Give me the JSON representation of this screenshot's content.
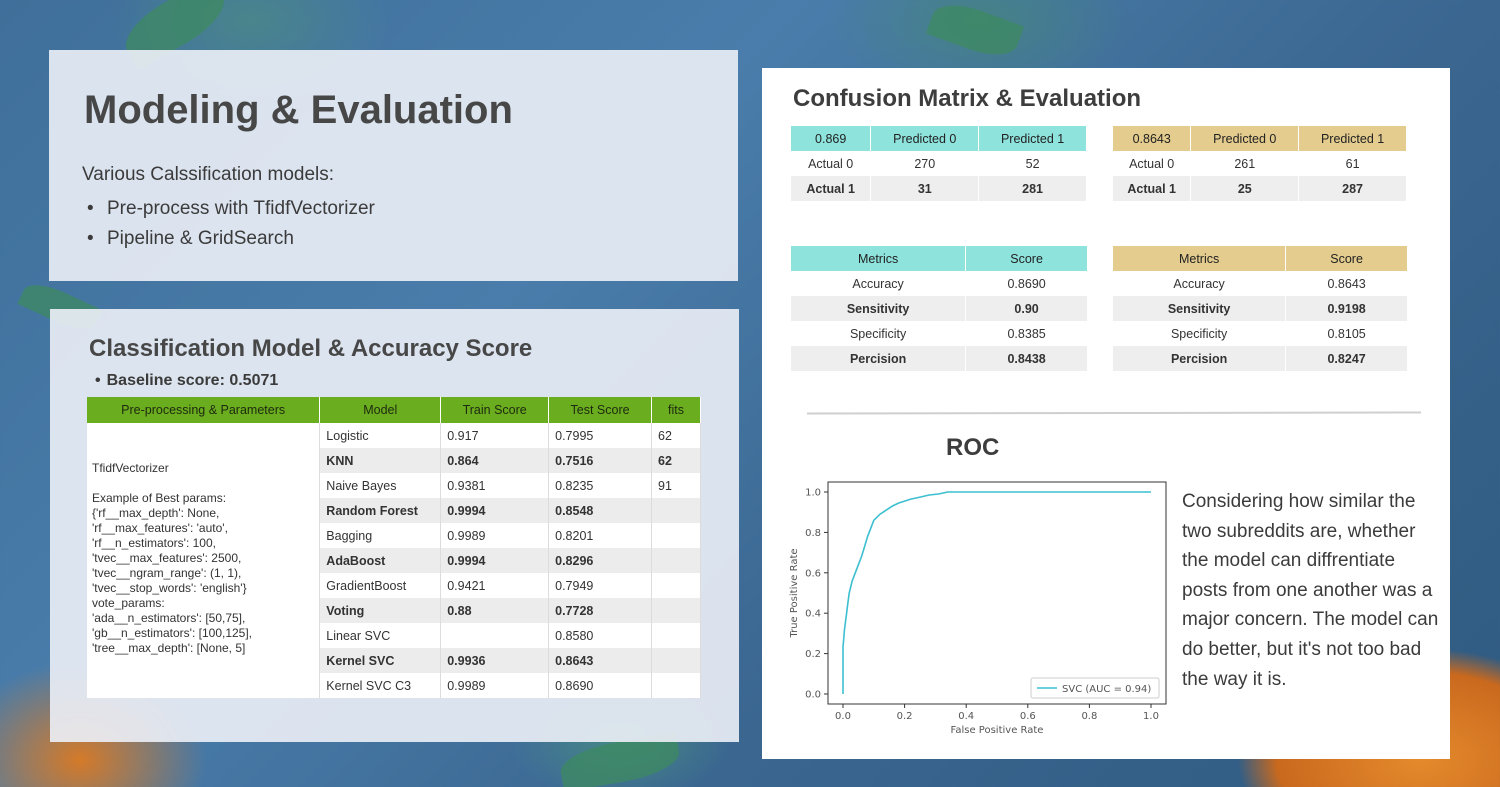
{
  "modeling": {
    "title": "Modeling & Evaluation",
    "intro": "Various Calssification models:",
    "bullets": [
      "Pre-process with TfidfVectorizer",
      "Pipeline & GridSearch"
    ]
  },
  "classification": {
    "title": "Classification Model & Accuracy Score",
    "baseline": "Baseline score: 0.5071",
    "headers": [
      "Pre-processing & Parameters",
      "Model",
      "Train Score",
      "Test Score",
      "fits"
    ],
    "params_text": "TfidfVectorizer\n\nExample of Best params:\n{'rf__max_depth': None,\n'rf__max_features': 'auto',\n'rf__n_estimators': 100,\n'tvec__max_features': 2500,\n'tvec__ngram_range': (1, 1),\n'tvec__stop_words': 'english'}\nvote_params:\n'ada__n_estimators': [50,75],\n'gb__n_estimators': [100,125],\n'tree__max_depth': [None, 5]",
    "rows": [
      {
        "model": "Logistic",
        "train": "0.917",
        "test": "0.7995",
        "fits": "62"
      },
      {
        "model": "KNN",
        "train": "0.864",
        "test": "0.7516",
        "fits": "62"
      },
      {
        "model": "Naive Bayes",
        "train": "0.9381",
        "test": "0.8235",
        "fits": "91"
      },
      {
        "model": "Random Forest",
        "train": "0.9994",
        "test": "0.8548",
        "fits": ""
      },
      {
        "model": "Bagging",
        "train": "0.9989",
        "test": "0.8201",
        "fits": ""
      },
      {
        "model": "AdaBoost",
        "train": "0.9994",
        "test": "0.8296",
        "fits": ""
      },
      {
        "model": "GradientBoost",
        "train": "0.9421",
        "test": "0.7949",
        "fits": ""
      },
      {
        "model": "Voting",
        "train": "0.88",
        "test": "0.7728",
        "fits": ""
      },
      {
        "model": "Linear SVC",
        "train": "",
        "test": "0.8580",
        "fits": ""
      },
      {
        "model": "Kernel SVC",
        "train": "0.9936",
        "test": "0.8643",
        "fits": ""
      },
      {
        "model": "Kernel SVC C3",
        "train": "0.9989",
        "test": "0.8690",
        "fits": ""
      }
    ]
  },
  "confusion": {
    "title": "Confusion Matrix & Evaluation",
    "left": {
      "header": [
        "0.869",
        "Predicted 0",
        "Predicted 1"
      ],
      "rows": [
        [
          "Actual 0",
          "270",
          "52"
        ],
        [
          "Actual 1",
          "31",
          "281"
        ]
      ],
      "metrics_header": [
        "Metrics",
        "Score"
      ],
      "metrics": [
        [
          "Accuracy",
          "0.8690"
        ],
        [
          "Sensitivity",
          "0.90"
        ],
        [
          "Specificity",
          "0.8385"
        ],
        [
          "Percision",
          "0.8438"
        ]
      ]
    },
    "right": {
      "header": [
        "0.8643",
        "Predicted 0",
        "Predicted 1"
      ],
      "rows": [
        [
          "Actual 0",
          "261",
          "61"
        ],
        [
          "Actual 1",
          "25",
          "287"
        ]
      ],
      "metrics_header": [
        "Metrics",
        "Score"
      ],
      "metrics": [
        [
          "Accuracy",
          "0.8643"
        ],
        [
          "Sensitivity",
          "0.9198"
        ],
        [
          "Specificity",
          "0.8105"
        ],
        [
          "Percision",
          "0.8247"
        ]
      ]
    },
    "colors": {
      "teal": "#8fe3dd",
      "gold": "#e4cc8e",
      "green": "#6aad1e"
    }
  },
  "roc": {
    "title": "ROC",
    "conclusion": "Considering how similar the two subreddits are, whether the model can diffrentiate posts from one another was a major concern. The model can do better, but it's not too bad the way it is.",
    "chart_data": {
      "type": "line",
      "xlabel": "False Positive Rate",
      "ylabel": "True Positive Rate",
      "xlim": [
        0.0,
        1.0
      ],
      "ylim": [
        0.0,
        1.0
      ],
      "xticks": [
        "0.0",
        "0.2",
        "0.4",
        "0.6",
        "0.8",
        "1.0"
      ],
      "yticks": [
        "0.0",
        "0.2",
        "0.4",
        "0.6",
        "0.8",
        "1.0"
      ],
      "legend_position": "bottom-right",
      "series": [
        {
          "name": "SVC (AUC = 0.94)",
          "color": "#3cbfd0",
          "x": [
            0.0,
            0.0,
            0.005,
            0.01,
            0.015,
            0.02,
            0.03,
            0.04,
            0.05,
            0.06,
            0.07,
            0.08,
            0.09,
            0.1,
            0.12,
            0.14,
            0.16,
            0.18,
            0.2,
            0.22,
            0.25,
            0.28,
            0.31,
            0.34,
            0.4,
            0.5,
            0.7,
            1.0
          ],
          "y": [
            0.0,
            0.23,
            0.32,
            0.38,
            0.44,
            0.5,
            0.56,
            0.6,
            0.64,
            0.68,
            0.73,
            0.78,
            0.82,
            0.86,
            0.89,
            0.91,
            0.93,
            0.945,
            0.955,
            0.965,
            0.975,
            0.985,
            0.99,
            1.0,
            1.0,
            1.0,
            1.0,
            1.0
          ]
        }
      ]
    }
  }
}
